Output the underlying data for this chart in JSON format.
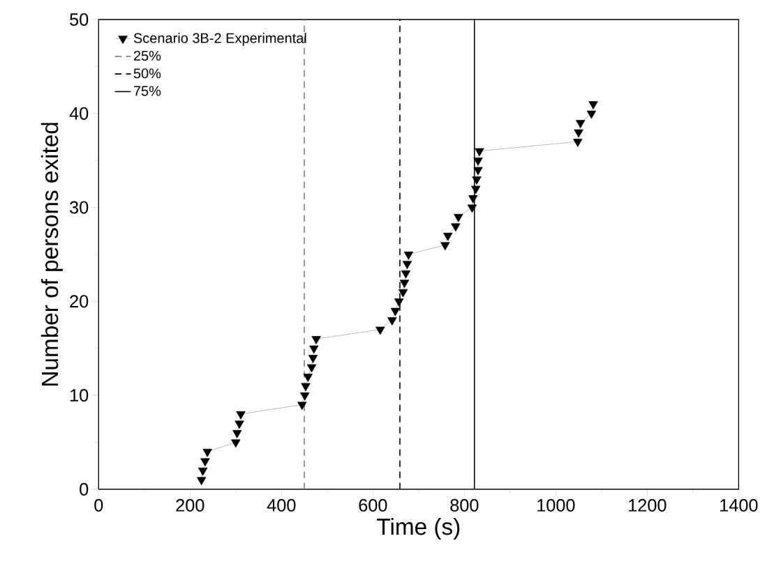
{
  "chart_data": {
    "type": "line",
    "xlabel": "Time (s)",
    "ylabel": "Number of persons exited",
    "x": [
      225,
      228,
      233,
      238,
      300,
      303,
      308,
      311,
      445,
      451,
      453,
      458,
      466,
      469,
      471,
      476,
      616,
      642,
      649,
      657,
      666,
      669,
      672,
      675,
      678,
      758,
      764,
      781,
      787,
      817,
      819,
      825,
      827,
      830,
      830,
      833,
      1048,
      1050,
      1054,
      1078,
      1082
    ],
    "series": [
      {
        "name": "Scenario 3B-2 Experimental",
        "color": "#000000",
        "values": [
          1,
          2,
          3,
          4,
          5,
          6,
          7,
          8,
          9,
          10,
          11,
          12,
          13,
          14,
          15,
          16,
          17,
          18,
          19,
          20,
          21,
          22,
          23,
          24,
          25,
          26,
          27,
          28,
          29,
          30,
          31,
          32,
          33,
          34,
          35,
          36,
          37,
          38,
          39,
          40,
          41
        ]
      },
      {
        "name": "25%",
        "color": "#808080",
        "x": [
          450,
          450
        ],
        "values": [
          0,
          50
        ],
        "marker": "none",
        "line_style": "dashed"
      },
      {
        "name": "50%",
        "color": "#000000",
        "x": [
          659,
          659
        ],
        "values": [
          0,
          50
        ],
        "marker": "none",
        "line_style": "dashed"
      },
      {
        "name": "75%",
        "color": "#000000",
        "x": [
          822,
          822
        ],
        "values": [
          0,
          50
        ],
        "marker": "none",
        "line_style": "solid"
      }
    ],
    "marker": "triangle",
    "legend": "top left",
    "xlim": [
      0,
      1400
    ],
    "ylim": [
      0,
      50
    ],
    "xticks": [
      0,
      200,
      400,
      600,
      800,
      1000,
      1200,
      1400
    ],
    "yticks": [
      0,
      10,
      20,
      30,
      40,
      50
    ]
  }
}
